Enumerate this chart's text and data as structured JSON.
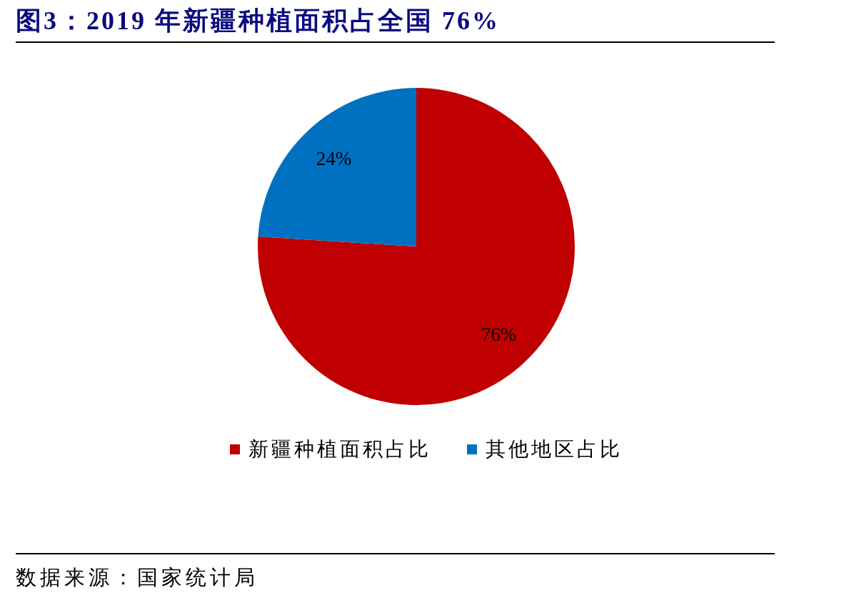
{
  "chart_data": {
    "type": "pie",
    "title": "图3：2019 年新疆种植面积占全国 76%",
    "categories": [
      "新疆种植面积占比",
      "其他地区占比"
    ],
    "values": [
      76,
      24
    ],
    "colors": [
      "#c00000",
      "#0070c0"
    ],
    "value_labels": [
      "76%",
      "24%"
    ],
    "legend": "bottom",
    "annotations": [
      "数据来源：国家统计局"
    ]
  }
}
